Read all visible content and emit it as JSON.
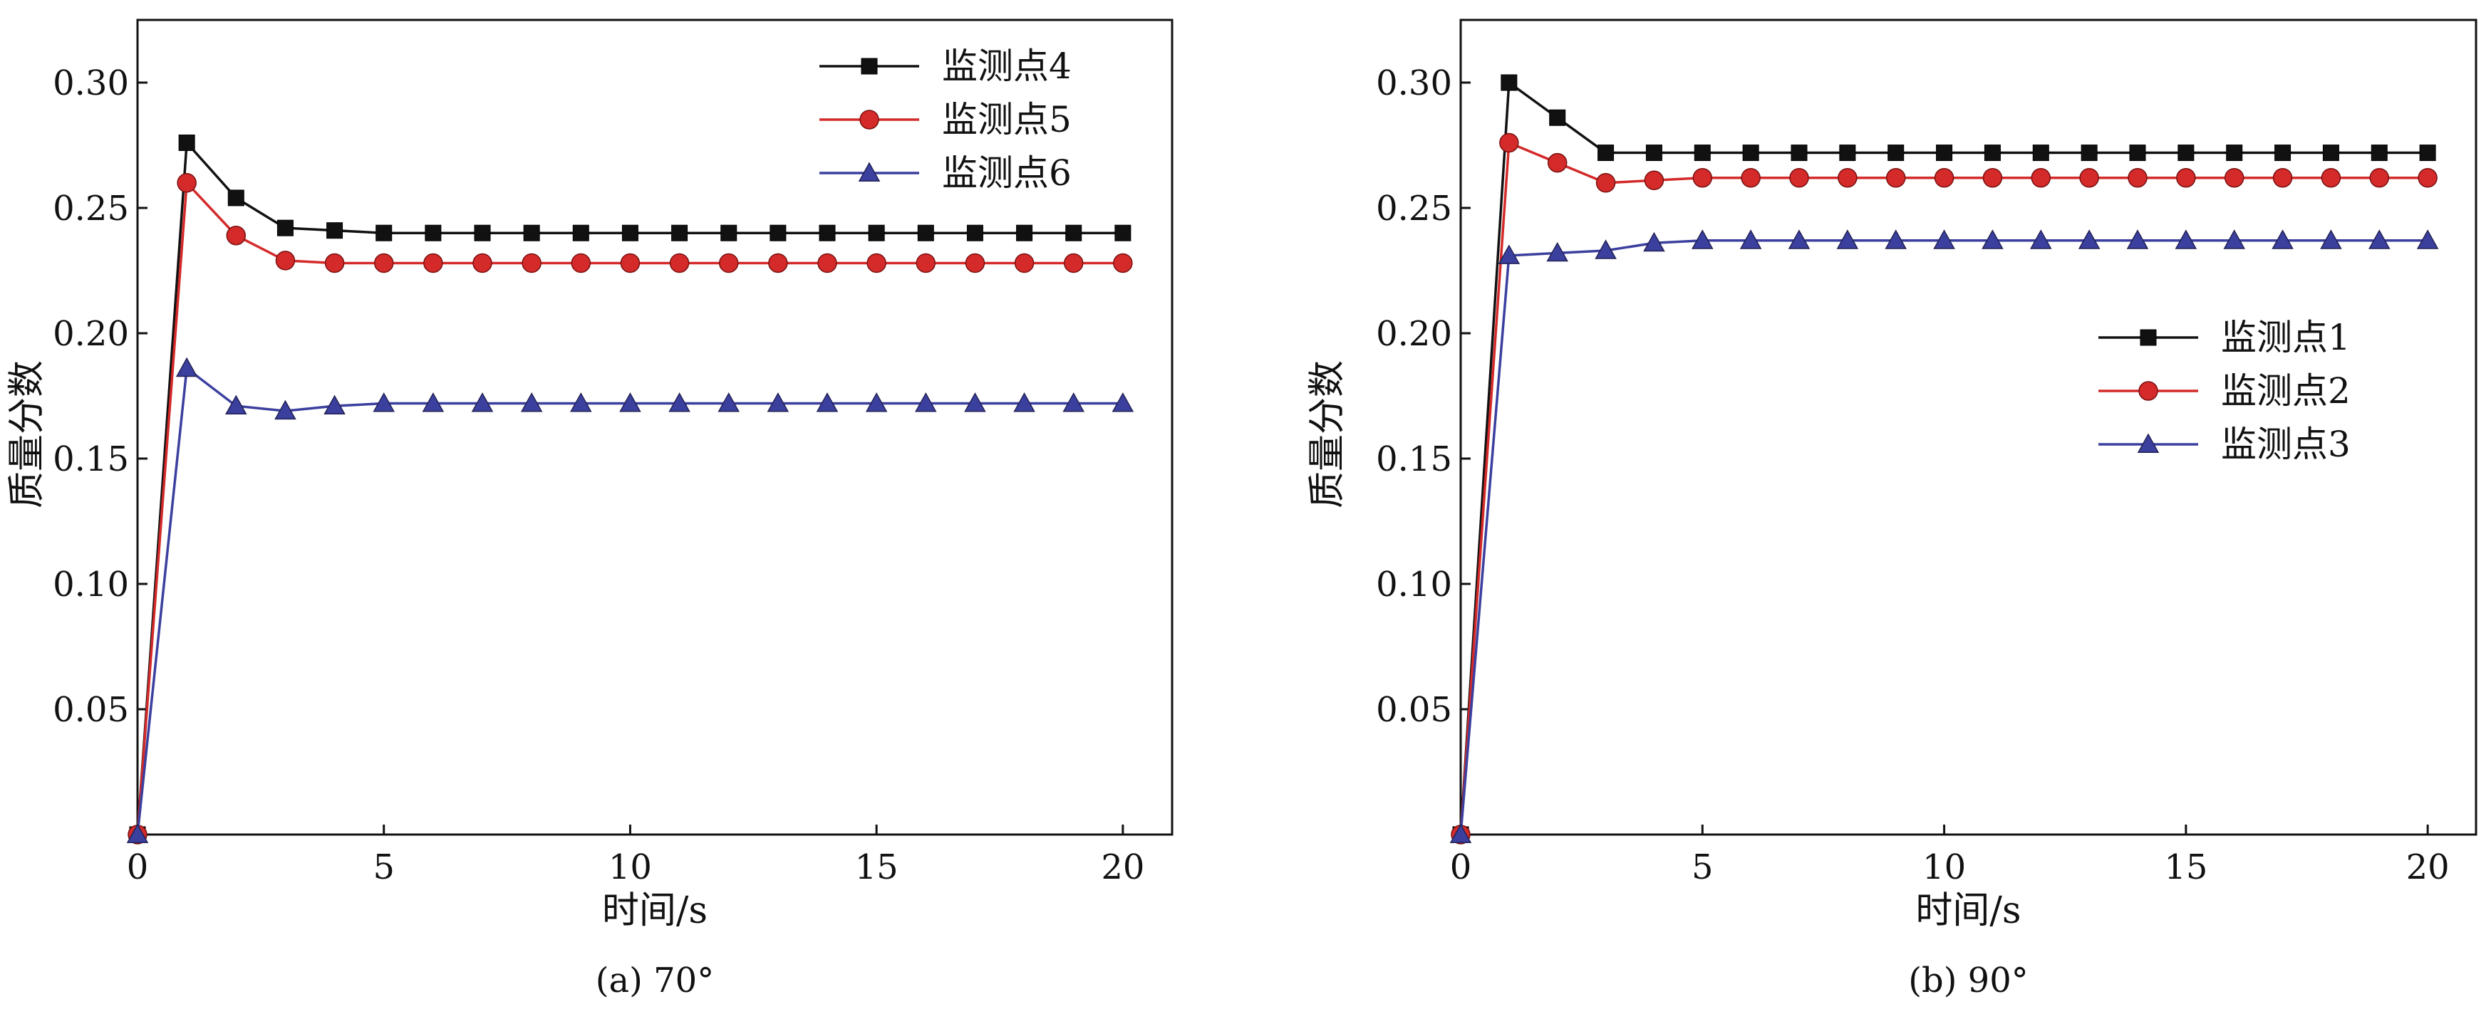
{
  "chart_data": [
    {
      "type": "line",
      "caption": "(a) 70°",
      "xlabel": "时间/s",
      "ylabel": "质量分数",
      "xlim": [
        0,
        21
      ],
      "ylim": [
        0,
        0.325
      ],
      "xticks": [
        0,
        5,
        10,
        15,
        20
      ],
      "yticks": [
        0.05,
        0.1,
        0.15,
        0.2,
        0.25,
        0.3
      ],
      "ytick_labels": [
        "0.05",
        "0.10",
        "0.15",
        "0.20",
        "0.25",
        "0.30"
      ],
      "legend_position": "top-right",
      "x": [
        0,
        1,
        2,
        3,
        4,
        5,
        6,
        7,
        8,
        9,
        10,
        11,
        12,
        13,
        14,
        15,
        16,
        17,
        18,
        19,
        20
      ],
      "series": [
        {
          "name": "监测点4",
          "color": "#111111",
          "marker": "square",
          "values": [
            0,
            0.276,
            0.254,
            0.242,
            0.241,
            0.24,
            0.24,
            0.24,
            0.24,
            0.24,
            0.24,
            0.24,
            0.24,
            0.24,
            0.24,
            0.24,
            0.24,
            0.24,
            0.24,
            0.24,
            0.24
          ]
        },
        {
          "name": "监测点5",
          "color": "#d42a2a",
          "marker": "circle",
          "values": [
            0,
            0.26,
            0.239,
            0.229,
            0.228,
            0.228,
            0.228,
            0.228,
            0.228,
            0.228,
            0.228,
            0.228,
            0.228,
            0.228,
            0.228,
            0.228,
            0.228,
            0.228,
            0.228,
            0.228,
            0.228
          ]
        },
        {
          "name": "监测点6",
          "color": "#3b3f9e",
          "marker": "triangle",
          "values": [
            0,
            0.186,
            0.171,
            0.169,
            0.171,
            0.172,
            0.172,
            0.172,
            0.172,
            0.172,
            0.172,
            0.172,
            0.172,
            0.172,
            0.172,
            0.172,
            0.172,
            0.172,
            0.172,
            0.172,
            0.172
          ]
        }
      ]
    },
    {
      "type": "line",
      "caption": "(b) 90°",
      "xlabel": "时间/s",
      "ylabel": "质量分数",
      "xlim": [
        0,
        21
      ],
      "ylim": [
        0,
        0.325
      ],
      "xticks": [
        0,
        5,
        10,
        15,
        20
      ],
      "yticks": [
        0.05,
        0.1,
        0.15,
        0.2,
        0.25,
        0.3
      ],
      "ytick_labels": [
        "0.05",
        "0.10",
        "0.15",
        "0.20",
        "0.25",
        "0.30"
      ],
      "legend_position": "center-right",
      "x": [
        0,
        1,
        2,
        3,
        4,
        5,
        6,
        7,
        8,
        9,
        10,
        11,
        12,
        13,
        14,
        15,
        16,
        17,
        18,
        19,
        20
      ],
      "series": [
        {
          "name": "监测点1",
          "color": "#111111",
          "marker": "square",
          "values": [
            0,
            0.3,
            0.286,
            0.272,
            0.272,
            0.272,
            0.272,
            0.272,
            0.272,
            0.272,
            0.272,
            0.272,
            0.272,
            0.272,
            0.272,
            0.272,
            0.272,
            0.272,
            0.272,
            0.272,
            0.272
          ]
        },
        {
          "name": "监测点2",
          "color": "#d42a2a",
          "marker": "circle",
          "values": [
            0,
            0.276,
            0.268,
            0.26,
            0.261,
            0.262,
            0.262,
            0.262,
            0.262,
            0.262,
            0.262,
            0.262,
            0.262,
            0.262,
            0.262,
            0.262,
            0.262,
            0.262,
            0.262,
            0.262,
            0.262
          ]
        },
        {
          "name": "监测点3",
          "color": "#3b3f9e",
          "marker": "triangle",
          "values": [
            0,
            0.231,
            0.232,
            0.233,
            0.236,
            0.237,
            0.237,
            0.237,
            0.237,
            0.237,
            0.237,
            0.237,
            0.237,
            0.237,
            0.237,
            0.237,
            0.237,
            0.237,
            0.237,
            0.237,
            0.237
          ]
        }
      ]
    }
  ]
}
